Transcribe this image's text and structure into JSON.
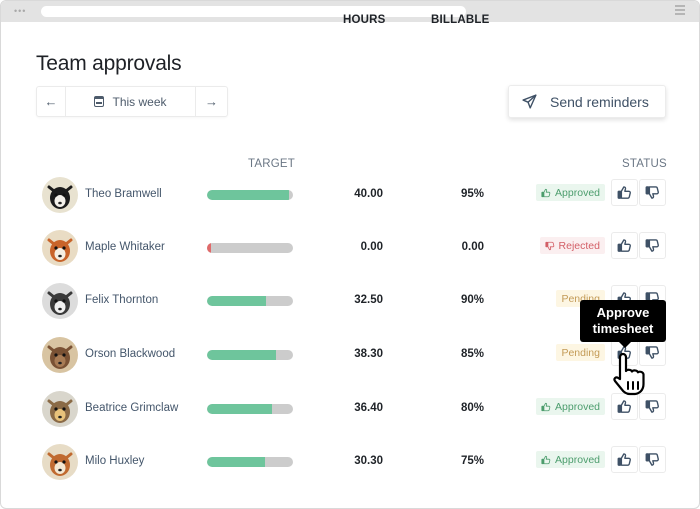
{
  "window": {
    "chrome_dots": "•••"
  },
  "page": {
    "title": "Team approvals"
  },
  "week_nav": {
    "prev_icon": "arrow-left-icon",
    "prev_glyph": "←",
    "label": "This week",
    "calendar_icon": "calendar-icon",
    "next_icon": "arrow-right-icon",
    "next_glyph": "→"
  },
  "send_reminders": {
    "label": "Send reminders",
    "icon": "paper-plane-icon"
  },
  "table": {
    "columns": {
      "target": "TARGET",
      "hours": "HOURS",
      "billable": "BILLABLE",
      "status": "STATUS"
    },
    "rows": [
      {
        "name": "Theo Bramwell",
        "avatar": "badger",
        "target_pct": 95,
        "target_color": "#6ec59c",
        "hours": "40.00",
        "billable": "95%",
        "status": "Approved"
      },
      {
        "name": "Maple Whitaker",
        "avatar": "fox",
        "target_pct": 5,
        "target_color": "#e06a6a",
        "hours": "0.00",
        "billable": "0.00",
        "status": "Rejected"
      },
      {
        "name": "Felix Thornton",
        "avatar": "raccoon",
        "target_pct": 69,
        "target_color": "#6ec59c",
        "hours": "32.50",
        "billable": "90%",
        "status": "Pending"
      },
      {
        "name": "Orson Blackwood",
        "avatar": "bear",
        "target_pct": 80,
        "target_color": "#6ec59c",
        "hours": "38.30",
        "billable": "85%",
        "status": "Pending"
      },
      {
        "name": "Beatrice Grimclaw",
        "avatar": "owl",
        "target_pct": 75,
        "target_color": "#6ec59c",
        "hours": "36.40",
        "billable": "80%",
        "status": "Approved"
      },
      {
        "name": "Milo Huxley",
        "avatar": "squirrel",
        "target_pct": 67,
        "target_color": "#6ec59c",
        "hours": "30.30",
        "billable": "75%",
        "status": "Approved"
      }
    ]
  },
  "tooltip": {
    "text_line1": "Approve",
    "text_line2": "timesheet"
  },
  "colors": {
    "approved_bg": "#eaf6ee",
    "approved_text": "#4c9d6d",
    "rejected_bg": "#fbeff0",
    "rejected_text": "#d35f67",
    "pending_bg": "#fdf6e3",
    "pending_text": "#c39a56",
    "bar_track": "#cccccc",
    "bar_fill": "#6ec59c",
    "icon": "#3f5166"
  }
}
